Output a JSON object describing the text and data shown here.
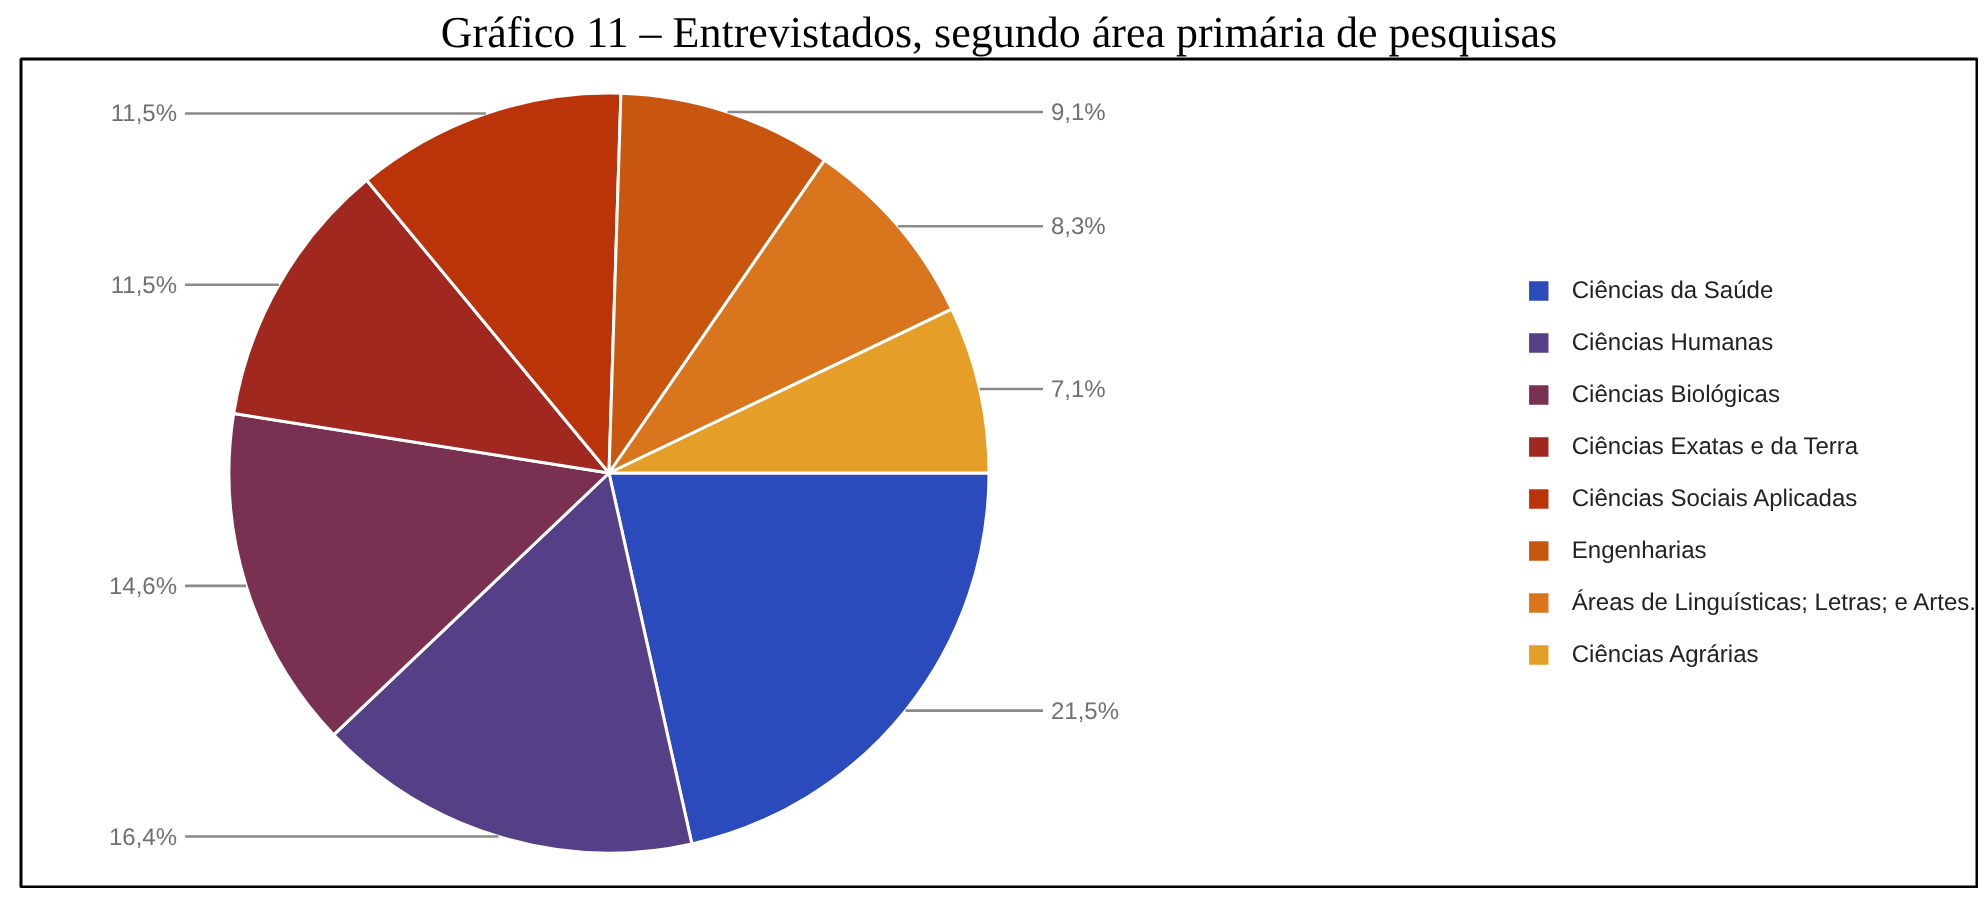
{
  "chart_data": {
    "type": "pie",
    "title": "Gráfico 11 – Entrevistados, segundo área primária de pesquisas",
    "categories": [
      "Ciências da Saúde",
      "Ciências Humanas",
      "Ciências Biológicas",
      "Ciências Exatas e da Terra",
      "Ciências Sociais Aplicadas",
      "Engenharias",
      "Áreas de Linguísticas; Letras; e Artes.",
      "Ciências Agrárias"
    ],
    "values": [
      21.5,
      16.4,
      14.6,
      11.5,
      11.5,
      9.1,
      8.3,
      7.1
    ],
    "colors": [
      "#2b4bbd",
      "#553f87",
      "#7a3050",
      "#a0281f",
      "#bb3309",
      "#c9560f",
      "#d9761d",
      "#e59e27"
    ],
    "value_labels": [
      "21,5%",
      "16,4%",
      "14,6%",
      "11,5%",
      "11,5%",
      "9,1%",
      "8,3%",
      "7,1%"
    ],
    "legend": "right"
  }
}
